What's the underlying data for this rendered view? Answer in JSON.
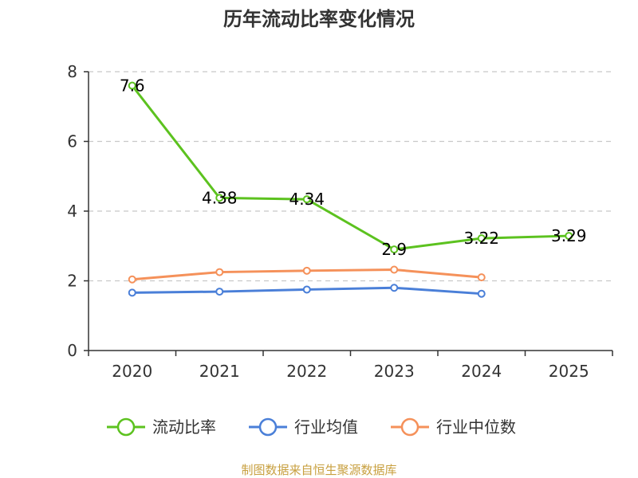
{
  "chart_data": {
    "type": "line",
    "title": "历年流动比率变化情况",
    "categories": [
      "2020",
      "2021",
      "2022",
      "2023",
      "2024",
      "2025"
    ],
    "ylim": [
      0,
      8
    ],
    "yticks": [
      "0",
      "2",
      "4",
      "6",
      "8"
    ],
    "grid": true,
    "legend_position": "bottom",
    "series": [
      {
        "name": "流动比率",
        "color": "#5cc21f",
        "values": [
          7.6,
          4.38,
          4.34,
          2.9,
          3.22,
          3.29
        ],
        "labels": [
          "7.6",
          "4.38",
          "4.34",
          "2.9",
          "3.22",
          "3.29"
        ]
      },
      {
        "name": "行业均值",
        "color": "#4a7fd8",
        "values": [
          1.66,
          1.69,
          1.75,
          1.8,
          1.63,
          null
        ]
      },
      {
        "name": "行业中位数",
        "color": "#f5915a",
        "values": [
          2.04,
          2.25,
          2.29,
          2.32,
          2.1,
          null
        ]
      }
    ],
    "source": "制图数据来自恒生聚源数据库"
  }
}
